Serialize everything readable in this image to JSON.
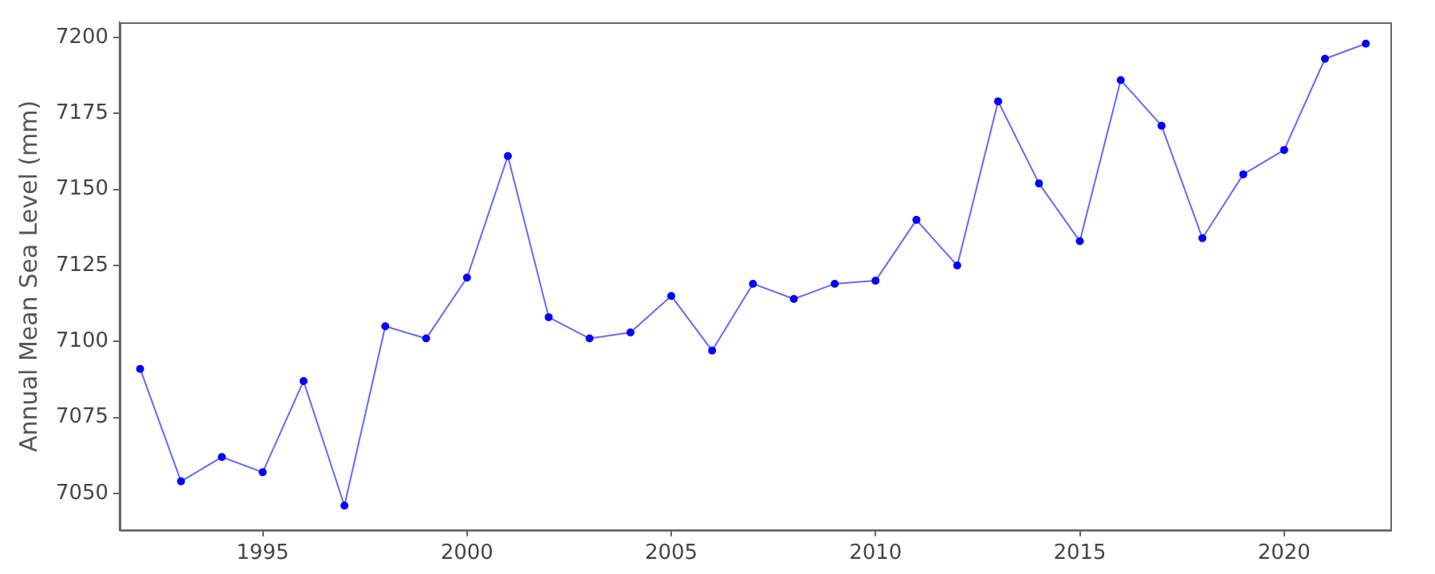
{
  "chart_data": {
    "type": "line",
    "ylabel": "Annual Mean Sea Level (mm)",
    "x": [
      1992,
      1993,
      1994,
      1995,
      1996,
      1997,
      1998,
      1999,
      2000,
      2001,
      2002,
      2003,
      2004,
      2005,
      2006,
      2007,
      2008,
      2009,
      2010,
      2011,
      2012,
      2013,
      2014,
      2015,
      2016,
      2017,
      2018,
      2019,
      2020,
      2021,
      2022
    ],
    "series": [
      {
        "color": "#0000ff",
        "values": [
          7091,
          7054,
          7062,
          7057,
          7087,
          7046,
          7105,
          7101,
          7121,
          7161,
          7108,
          7101,
          7103,
          7115,
          7097,
          7119,
          7114,
          7119,
          7120,
          7140,
          7125,
          7179,
          7152,
          7133,
          7186,
          7171,
          7134,
          7155,
          7163,
          7193,
          7198
        ]
      }
    ],
    "xlim": [
      1991.5,
      2022.6
    ],
    "xticks": [
      1995,
      2000,
      2005,
      2010,
      2015,
      2020
    ],
    "ylim": [
      7038,
      7205
    ],
    "yticks": [
      7050,
      7075,
      7100,
      7125,
      7150,
      7175,
      7200
    ],
    "grid": false,
    "legend": false,
    "marker": "circle",
    "line_style": "solid"
  }
}
